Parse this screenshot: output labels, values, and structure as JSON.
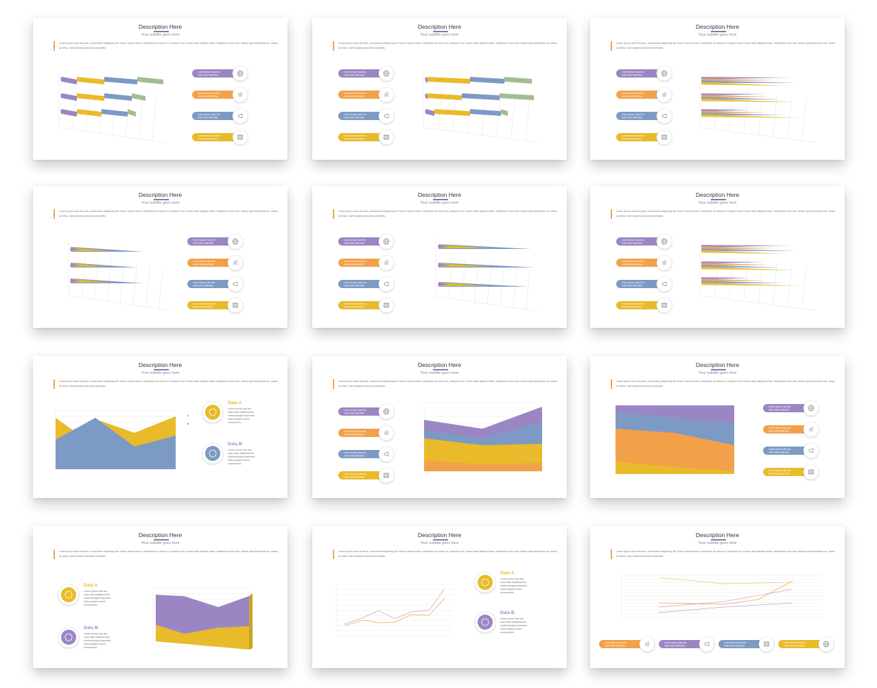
{
  "slide_title": "Description Here",
  "slide_subtitle": "Your subtitle goes here",
  "body_text": "Lorem ipsum dolor sit amet, consectetur adipiscing elit. Donec mauris lorem, vestibulum ac rutrum id, suscipit in dui. Donec vitae dapibus tellus. Vestibulum nunc sem, finibus quis elementum ac, varius ac tellus. Nam faucibus faucibus venenatis.",
  "pill_text": "Lorem Ipsum has two main data statistical",
  "data_a": "Data A",
  "data_b": "Data B",
  "data_desc": "Lorem Ipsum has two main data statistical this methodologies important Data analysis which summarizes.",
  "colors": {
    "purple": "#9b86c4",
    "orange": "#f2a14a",
    "blue": "#7d9ac4",
    "yellow": "#e9ba2a",
    "green": "#a3bd93"
  },
  "icons": [
    "globe-icon",
    "bars-icon",
    "megaphone-icon",
    "list-icon"
  ],
  "slides": [
    {
      "layout": "bars-left"
    },
    {
      "layout": "bars-right"
    },
    {
      "layout": "spikes-right"
    },
    {
      "layout": "cones-left"
    },
    {
      "layout": "cones-right"
    },
    {
      "layout": "spikes-right"
    },
    {
      "layout": "area-left"
    },
    {
      "layout": "area-right"
    },
    {
      "layout": "stack-left"
    },
    {
      "layout": "area3d-right"
    },
    {
      "layout": "line-left"
    },
    {
      "layout": "lines-bottom"
    }
  ]
}
